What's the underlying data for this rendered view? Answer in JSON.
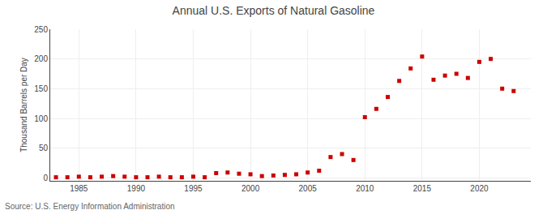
{
  "chart_data": {
    "type": "scatter",
    "title": "Annual U.S. Exports of Natural Gasoline",
    "ylabel": "Thousand Barrels per Day",
    "annotations": [
      "Source: U.S. Energy Information Administration"
    ],
    "color": "#cc0000",
    "marker": "square",
    "grid": true,
    "xlim": [
      1982.5,
      2024.5
    ],
    "ylim": [
      -5,
      250
    ],
    "xticks": [
      1985,
      1990,
      1995,
      2000,
      2005,
      2010,
      2015,
      2020
    ],
    "yticks": [
      0,
      50,
      100,
      150,
      200,
      250
    ],
    "x": [
      1983,
      1984,
      1985,
      1986,
      1987,
      1988,
      1989,
      1990,
      1991,
      1992,
      1993,
      1994,
      1995,
      1996,
      1997,
      1998,
      1999,
      2000,
      2001,
      2002,
      2003,
      2004,
      2005,
      2006,
      2007,
      2008,
      2009,
      2010,
      2011,
      2012,
      2013,
      2014,
      2015,
      2016,
      2017,
      2018,
      2019,
      2020,
      2021,
      2022,
      2023
    ],
    "values": [
      1,
      1,
      2,
      1,
      2,
      3,
      2,
      1,
      1,
      2,
      1,
      1,
      2,
      1,
      8,
      9,
      7,
      6,
      3,
      4,
      5,
      6,
      9,
      12,
      35,
      40,
      30,
      102,
      116,
      136,
      163,
      184,
      204,
      165,
      172,
      175,
      168,
      195,
      200,
      150,
      146
    ]
  }
}
